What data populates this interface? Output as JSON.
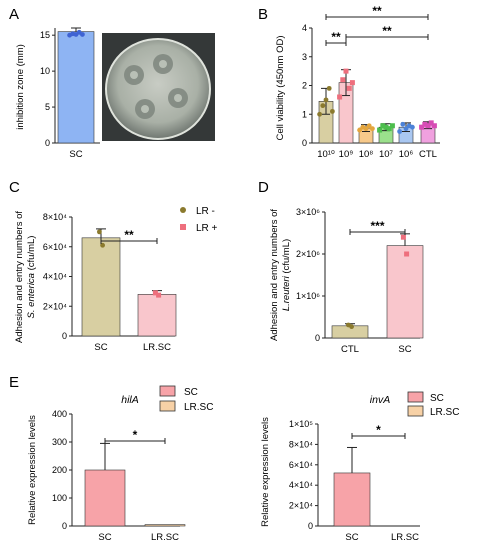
{
  "panels": {
    "A": {
      "letter": "A"
    },
    "B": {
      "letter": "B"
    },
    "C": {
      "letter": "C"
    },
    "D": {
      "letter": "D"
    },
    "E": {
      "letter": "E"
    }
  },
  "colors": {
    "sc_blue": "#8EB4F3",
    "sc_blue_dot": "#3F63D3",
    "tan": "#D8CFA2",
    "tan_dark": "#8B7A2E",
    "pink": "#F9C6CC",
    "pink_dark": "#EE6F7D",
    "orange": "#F7C98A",
    "green": "#9BE08C",
    "lightblue": "#A9C7F1",
    "magenta": "#F0A1DF",
    "peach": "#F7D1A6",
    "salmon": "#F7A3A8"
  },
  "chart_data": [
    {
      "panel": "A",
      "type": "bar",
      "ylabel": "inhibition zone (mm)",
      "categories": [
        "SC"
      ],
      "values": [
        15.5
      ],
      "error": [
        0.5
      ],
      "points": [
        15.0,
        15.2,
        15.1,
        15.4,
        15.1
      ],
      "ylim": [
        0,
        16
      ],
      "yticks": [
        "0",
        "5",
        "10",
        "15"
      ],
      "ytick_values": [
        0,
        5,
        10,
        15
      ]
    },
    {
      "panel": "B",
      "type": "bar",
      "ylabel": "Cell viability (450nm OD)",
      "categories": [
        "10¹⁰",
        "10⁹",
        "10⁸",
        "10⁷",
        "10⁶",
        "CTL"
      ],
      "values": [
        1.45,
        2.1,
        0.52,
        0.55,
        0.55,
        0.62
      ],
      "error": [
        0.45,
        0.45,
        0.12,
        0.12,
        0.15,
        0.12
      ],
      "points": [
        [
          1.0,
          1.3,
          1.5,
          1.9,
          1.1
        ],
        [
          1.6,
          2.2,
          2.5,
          1.9,
          2.1
        ],
        [
          0.45,
          0.55,
          0.5,
          0.6,
          0.5
        ],
        [
          0.45,
          0.6,
          0.55,
          0.5,
          0.6
        ],
        [
          0.4,
          0.65,
          0.5,
          0.6,
          0.55
        ],
        [
          0.55,
          0.65,
          0.6,
          0.7,
          0.6
        ]
      ],
      "ylim": [
        0,
        4
      ],
      "yticks": [
        "0",
        "1",
        "2",
        "3",
        "4"
      ],
      "ytick_values": [
        0,
        1,
        2,
        3,
        4
      ],
      "significance": [
        {
          "from": 0,
          "to": 5,
          "label": "**"
        },
        {
          "from": 1,
          "to": 5,
          "label": "**"
        },
        {
          "from": 0,
          "to": 1,
          "label": "**"
        }
      ]
    },
    {
      "panel": "C",
      "type": "bar",
      "ylabel_line1": "Adhesion and entry numbers of",
      "ylabel_line2_italic": "S. enterica",
      "ylabel_line2_rest": " (cfu/mL)",
      "categories": [
        "SC",
        "LR.SC"
      ],
      "values": [
        66000,
        28000
      ],
      "error": [
        6000,
        2500
      ],
      "points": [
        [
          70000,
          61000
        ],
        [
          29000,
          27500
        ]
      ],
      "ylim": [
        0,
        80000
      ],
      "yticks": [
        "0",
        "2×10⁴",
        "4×10⁴",
        "6×10⁴",
        "8×10⁴"
      ],
      "ytick_values": [
        0,
        20000,
        40000,
        60000,
        80000
      ],
      "legend": [
        "LR -",
        "LR +"
      ],
      "significance": [
        {
          "from": 0,
          "to": 1,
          "label": "**"
        }
      ]
    },
    {
      "panel": "D",
      "type": "bar",
      "ylabel_line1": "Adhesion and entry numbers of",
      "ylabel_line2_italic": "L.reuteri",
      "ylabel_line2_rest": " (cfu/mL)",
      "categories": [
        "CTL",
        "SC"
      ],
      "values": [
        290000,
        2200000
      ],
      "error": [
        50000,
        280000
      ],
      "points": [
        [
          310000,
          270000
        ],
        [
          2400000,
          2000000
        ]
      ],
      "ylim": [
        0,
        3000000
      ],
      "yticks": [
        "0",
        "1×10⁶",
        "2×10⁶",
        "3×10⁶"
      ],
      "ytick_values": [
        0,
        1000000,
        2000000,
        3000000
      ],
      "significance": [
        {
          "from": 0,
          "to": 1,
          "label": "***"
        }
      ]
    },
    {
      "panel": "E1",
      "type": "bar",
      "title": "hilA",
      "ylabel": "Relative expression levels",
      "categories": [
        "SC",
        "LR.SC"
      ],
      "values": [
        200,
        5
      ],
      "error": [
        95,
        0
      ],
      "ylim": [
        0,
        400
      ],
      "yticks": [
        "0",
        "100",
        "200",
        "300",
        "400"
      ],
      "ytick_values": [
        0,
        100,
        200,
        300,
        400
      ],
      "legend": [
        "SC",
        "LR.SC"
      ],
      "significance": [
        {
          "from": 0,
          "to": 1,
          "label": "*"
        }
      ]
    },
    {
      "panel": "E2",
      "type": "bar",
      "title": "invA",
      "ylabel": "Relative expression levels",
      "categories": [
        "SC",
        "LR.SC"
      ],
      "values": [
        52000,
        0
      ],
      "error": [
        25000,
        0
      ],
      "ylim": [
        0,
        100000
      ],
      "yticks": [
        "0",
        "2×10⁴",
        "4×10⁴",
        "6×10⁴",
        "8×10⁴",
        "1×10⁵"
      ],
      "ytick_values": [
        0,
        20000,
        40000,
        60000,
        80000,
        100000
      ],
      "legend": [
        "SC",
        "LR.SC"
      ],
      "significance": [
        {
          "from": 0,
          "to": 1,
          "label": "*"
        }
      ]
    }
  ]
}
